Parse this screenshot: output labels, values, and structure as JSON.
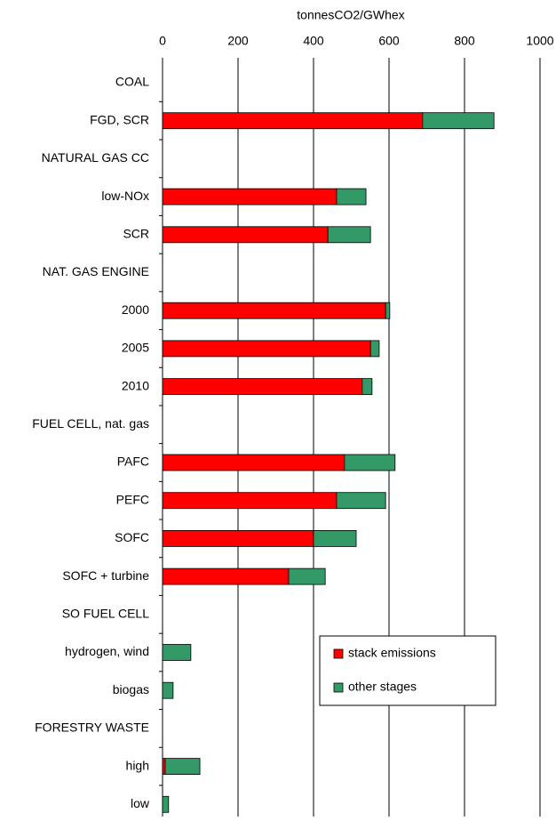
{
  "chart_data": {
    "type": "stacked-barh",
    "xlabel": "tonnesCO2/GWhex",
    "categories": [
      "COAL",
      "FGD, SCR",
      "NATURAL GAS CC",
      "low-NOx",
      "SCR",
      "NAT. GAS ENGINE",
      "2000",
      "2005",
      "2010",
      "FUEL CELL, nat. gas",
      "PAFC",
      "PEFC",
      "SOFC",
      "SOFC + turbine",
      "SO FUEL CELL",
      "hydrogen, wind",
      "biogas",
      "FORESTRY WASTE",
      "high",
      "low"
    ],
    "series": [
      {
        "name": "stack emissions",
        "color": "#ff0000",
        "values": [
          null,
          689,
          null,
          461,
          438,
          null,
          591,
          551,
          529,
          null,
          482,
          461,
          400,
          334,
          null,
          0,
          0,
          null,
          7,
          0
        ]
      },
      {
        "name": "other stages",
        "color": "#339966",
        "values": [
          null,
          189,
          null,
          78,
          113,
          null,
          11,
          23,
          26,
          null,
          134,
          130,
          113,
          97,
          null,
          75,
          28,
          null,
          92,
          16
        ]
      }
    ],
    "xlim": [
      0,
      1000
    ],
    "xticks": [
      0,
      200,
      400,
      600,
      800,
      1000
    ],
    "grid": true,
    "legend": "lower right"
  }
}
